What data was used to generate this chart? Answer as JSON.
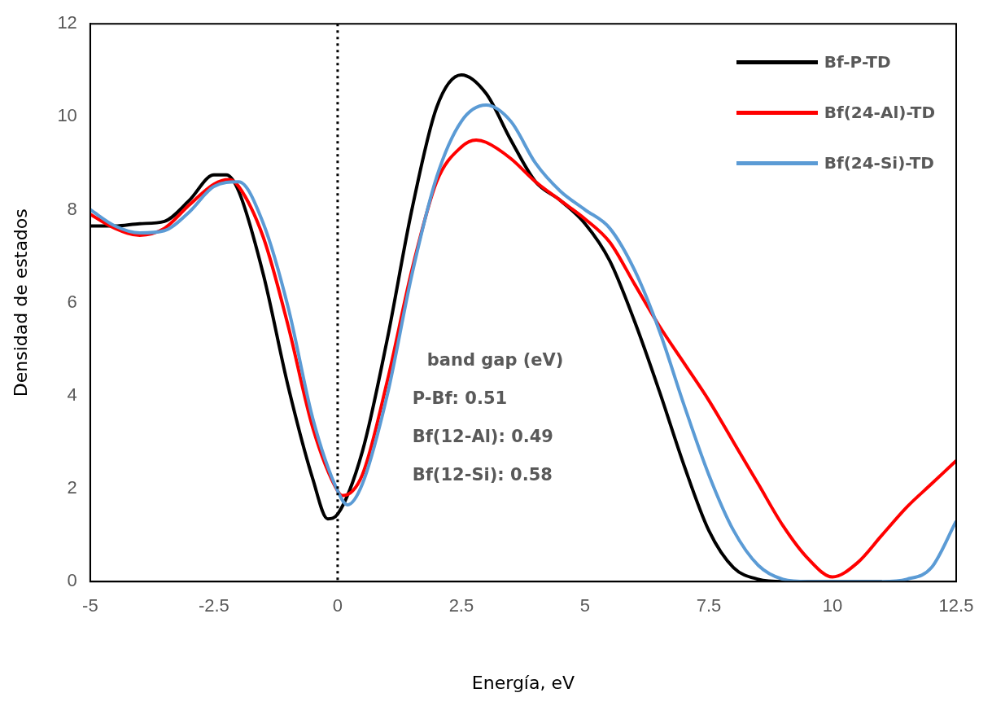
{
  "chart_data": {
    "type": "line",
    "xlabel": "Energía, eV",
    "ylabel": "Densidad de estados",
    "xlim": [
      -5,
      12.5
    ],
    "xticks": [
      -5,
      -2.5,
      0,
      2.5,
      5,
      7.5,
      10,
      12.5
    ],
    "ylim": [
      0,
      12
    ],
    "yticks": [
      0,
      2,
      4,
      6,
      8,
      10,
      12
    ],
    "grid": false,
    "legend": "top right",
    "marker": "none",
    "line_style": "solid",
    "ref_lines": [
      {
        "axis": "x",
        "value": 0,
        "color": "#000000",
        "line_style": "dotted"
      }
    ],
    "annotations": [
      "band gap (eV)",
      "P-Bf: 0.51",
      "Bf(12-Al): 0.49",
      "Bf(12-Si): 0.58"
    ],
    "series": [
      {
        "name": "Bf-P-TD",
        "color": "#000000",
        "x": [
          -5,
          -4.5,
          -4,
          -3.5,
          -3,
          -2.5,
          -2.25,
          -2,
          -1.5,
          -1,
          -0.5,
          -0.2,
          0,
          0.5,
          1,
          1.5,
          2,
          2.5,
          3,
          3.5,
          4,
          4.5,
          5,
          5.5,
          6,
          6.5,
          7,
          7.5,
          8,
          8.5,
          9,
          10,
          11
        ],
        "values": [
          7.65,
          7.65,
          7.7,
          7.75,
          8.2,
          8.75,
          8.75,
          8.4,
          6.6,
          4.2,
          2.2,
          1.35,
          1.45,
          2.8,
          5.2,
          8.0,
          10.2,
          10.9,
          10.5,
          9.5,
          8.6,
          8.2,
          7.7,
          6.9,
          5.6,
          4.1,
          2.5,
          1.1,
          0.3,
          0.05,
          0,
          0,
          0
        ]
      },
      {
        "name": "Bf(24-Al)-TD",
        "color": "#ff0000",
        "x": [
          -5,
          -4.5,
          -4,
          -3.5,
          -3,
          -2.5,
          -2.2,
          -2,
          -1.5,
          -1,
          -0.5,
          0,
          0.1,
          0.5,
          1,
          1.5,
          2,
          2.5,
          2.8,
          3,
          3.5,
          4,
          4.5,
          5,
          5.5,
          6,
          6.5,
          7,
          7.5,
          8,
          8.5,
          9,
          9.5,
          10,
          10.5,
          11,
          11.5,
          12,
          12.5
        ],
        "values": [
          7.9,
          7.6,
          7.45,
          7.6,
          8.1,
          8.55,
          8.65,
          8.5,
          7.4,
          5.5,
          3.3,
          1.95,
          1.85,
          2.3,
          4.3,
          6.7,
          8.6,
          9.35,
          9.5,
          9.45,
          9.1,
          8.6,
          8.2,
          7.8,
          7.3,
          6.4,
          5.5,
          4.7,
          3.9,
          3.0,
          2.1,
          1.2,
          0.5,
          0.1,
          0.4,
          1.0,
          1.6,
          2.1,
          2.6
        ]
      },
      {
        "name": "Bf(24-Si)-TD",
        "color": "#5b9bd5",
        "x": [
          -5,
          -4.5,
          -4,
          -3.5,
          -3,
          -2.5,
          -2,
          -1.5,
          -1,
          -0.5,
          0,
          0.2,
          0.5,
          1,
          1.5,
          2,
          2.5,
          3,
          3.5,
          4,
          4.5,
          5,
          5.5,
          6,
          6.5,
          7,
          7.5,
          8,
          8.5,
          9,
          9.5,
          10,
          11,
          11.5,
          12,
          12.5
        ],
        "values": [
          8.0,
          7.65,
          7.5,
          7.55,
          7.95,
          8.5,
          8.6,
          7.7,
          5.9,
          3.5,
          1.95,
          1.65,
          2.1,
          4.0,
          6.6,
          8.7,
          9.9,
          10.25,
          9.9,
          9.0,
          8.4,
          8.0,
          7.6,
          6.7,
          5.4,
          3.8,
          2.3,
          1.1,
          0.35,
          0.05,
          0,
          0,
          0,
          0.05,
          0.3,
          1.3
        ]
      }
    ]
  }
}
